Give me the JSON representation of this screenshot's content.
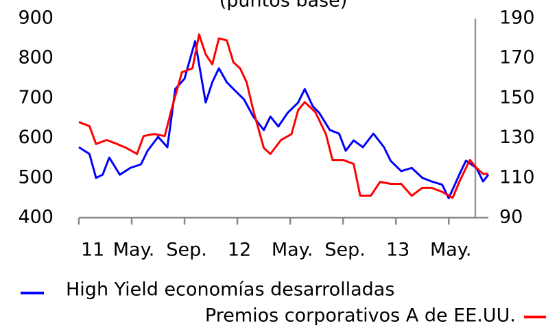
{
  "chart_data": {
    "type": "line",
    "subtitle": "(puntos base)",
    "xlim": [
      0,
      31
    ],
    "xticks": [
      {
        "value": 0,
        "label": "11"
      },
      {
        "value": 4,
        "label": "May."
      },
      {
        "value": 8,
        "label": "Sep."
      },
      {
        "value": 12,
        "label": "12"
      },
      {
        "value": 16,
        "label": "May."
      },
      {
        "value": 20,
        "label": "Sep."
      },
      {
        "value": 24,
        "label": "13"
      },
      {
        "value": 28,
        "label": "May."
      }
    ],
    "ylim": [
      400,
      900
    ],
    "yticks": [
      400,
      500,
      600,
      700,
      800,
      900
    ],
    "y2lim": [
      90,
      190
    ],
    "y2ticks": [
      90,
      110,
      130,
      150,
      170,
      190
    ],
    "series": [
      {
        "name": "High Yield economías desarrolladas",
        "color": "#0000ff",
        "axis": "y",
        "x": [
          0,
          0.8,
          1.3,
          1.8,
          2.3,
          3.1,
          3.9,
          4.7,
          5.2,
          6.0,
          6.7,
          7.3,
          8.0,
          8.8,
          9.6,
          10.1,
          10.6,
          11.2,
          11.7,
          12.5,
          13.2,
          14.0,
          14.5,
          15.1,
          15.8,
          16.6,
          17.1,
          17.7,
          18.2,
          19.0,
          19.7,
          20.2,
          20.8,
          21.5,
          22.3,
          23.1,
          23.6,
          24.4,
          25.2,
          26.0,
          26.7,
          27.5,
          28.0,
          28.8,
          29.3,
          30.1,
          30.6,
          31.0
        ],
        "values": [
          577,
          560,
          500,
          508,
          551,
          508,
          525,
          534,
          568,
          603,
          577,
          723,
          749,
          843,
          689,
          740,
          775,
          740,
          723,
          697,
          654,
          620,
          654,
          629,
          663,
          689,
          723,
          680,
          663,
          620,
          611,
          568,
          594,
          577,
          611,
          577,
          543,
          517,
          525,
          500,
          491,
          483,
          449,
          508,
          543,
          525,
          491,
          508
        ]
      },
      {
        "name": "Premios corporativos A de EE.UU.",
        "color": "#ff0000",
        "axis": "y2",
        "x": [
          0,
          0.8,
          1.3,
          2.1,
          2.9,
          3.6,
          4.4,
          4.9,
          5.7,
          6.5,
          7.0,
          7.8,
          8.6,
          9.1,
          9.6,
          10.1,
          10.6,
          11.2,
          11.7,
          12.2,
          12.7,
          13.2,
          14.0,
          14.5,
          15.3,
          16.1,
          16.6,
          17.1,
          17.9,
          18.7,
          19.2,
          20.0,
          20.8,
          21.3,
          22.1,
          22.8,
          23.6,
          24.4,
          25.2,
          26.0,
          26.7,
          27.5,
          28.3,
          28.8,
          29.6,
          30.1,
          30.6,
          31.0
        ],
        "values": [
          138,
          136,
          127,
          129,
          127,
          125,
          122,
          131,
          132,
          131,
          144,
          163,
          165,
          182,
          172,
          167,
          180,
          179,
          168,
          165,
          158,
          144,
          125,
          122,
          129,
          132,
          144,
          148,
          143,
          132,
          119,
          119,
          117,
          101,
          101,
          108,
          107,
          107,
          101,
          105,
          105,
          103,
          100,
          108,
          119,
          115,
          112,
          112
        ]
      }
    ]
  }
}
